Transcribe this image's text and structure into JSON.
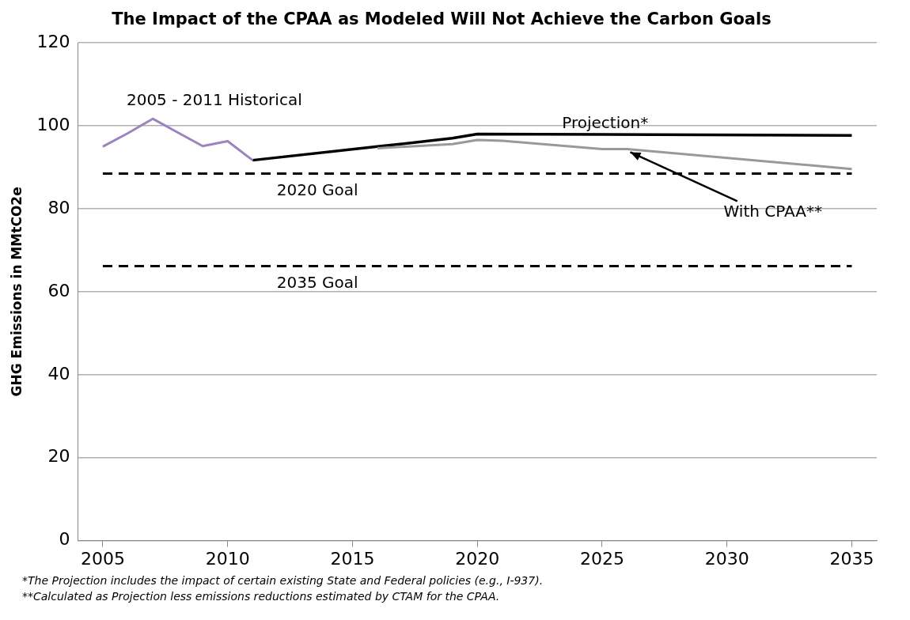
{
  "chart_data": {
    "type": "line",
    "title": "The Impact of the CPAA as Modeled Will Not Achieve the Carbon Goals",
    "ylabel": "GHG Emissions in MMtCO2e",
    "series": [
      {
        "name": "2005 - 2011 Historical",
        "color": "#9b85c0",
        "x": [
          2005,
          2006,
          2007,
          2008,
          2009,
          2010,
          2011
        ],
        "values": [
          95,
          98.2,
          101.7,
          98.4,
          95.1,
          96.3,
          91.7
        ]
      },
      {
        "name": "With CPAA**",
        "color": "#999999",
        "x": [
          2016,
          2019,
          2020,
          2021,
          2025,
          2026,
          2035
        ],
        "values": [
          94.6,
          95.6,
          96.6,
          96.4,
          94.4,
          94.4,
          89.6
        ]
      },
      {
        "name": "Projection*",
        "color": "#000000",
        "x": [
          2011,
          2016,
          2019,
          2020,
          2035
        ],
        "values": [
          91.7,
          95,
          97,
          98,
          97.7
        ]
      }
    ],
    "xlim": [
      2004,
      2036
    ],
    "xticks": [
      2005,
      2010,
      2015,
      2020,
      2025,
      2030,
      2035
    ],
    "ylim": [
      0,
      120
    ],
    "yticks": [
      0,
      20,
      40,
      60,
      80,
      100,
      120
    ],
    "grid": "y",
    "legend": false,
    "line_style": "solid",
    "marker": "none",
    "ref_lines": [
      {
        "axis": "y",
        "value": 88.5,
        "label": "2020 Goal",
        "color": "#000000",
        "line_style": "dashed"
      },
      {
        "axis": "y",
        "value": 66.2,
        "label": "2035 Goal",
        "color": "#000000",
        "line_style": "dashed"
      }
    ],
    "annotations": [
      "*The Projection includes the impact of certain existing State and Federal policies (e.g., I-937).",
      "**Calculated as Projection less emissions reductions estimated by CTAM for the CPAA."
    ]
  }
}
